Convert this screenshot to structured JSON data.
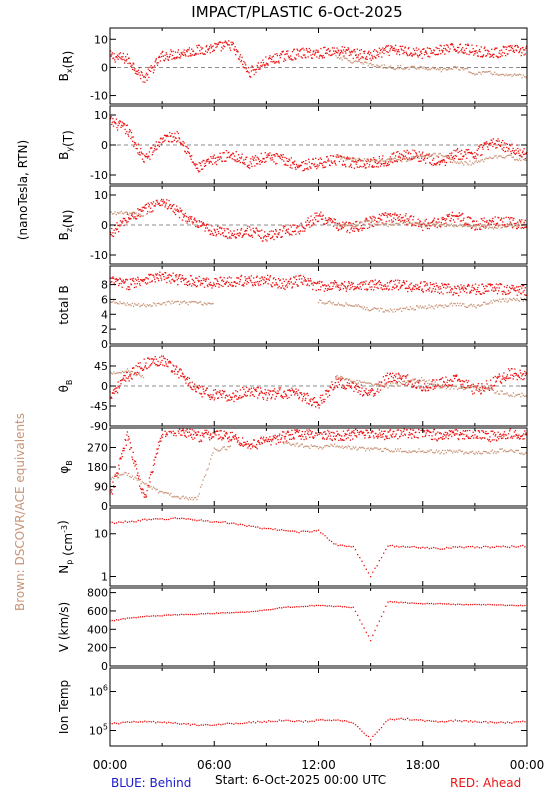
{
  "title": "IMPACT/PLASTIC    6-Oct-2025",
  "side_label_units": "(nanoTesla, RTN)",
  "side_label_brown": "Brown: DSCOVR/ACE equivalents",
  "footer": {
    "blue": "BLUE: Behind",
    "start": "Start:   6-Oct-2025 00:00 UTC",
    "red": "RED: Ahead"
  },
  "colors": {
    "ahead": "#ee1111",
    "equivalent": "#c89478",
    "blue": "#1a1acc",
    "text": "#000000"
  },
  "chart_data": [
    {
      "type": "scatter",
      "panel": "Bx",
      "ylabel": "B_x(R)",
      "ylim": [
        -13,
        14
      ],
      "yticks": [
        10,
        0,
        -10
      ],
      "ytick_labels": [
        "10",
        "0",
        "-10"
      ],
      "dashed_zero": true,
      "x": "hours 0-24",
      "series": [
        {
          "role": "ahead",
          "values": [
            4,
            3,
            -4,
            4,
            5,
            6,
            7,
            8,
            -2,
            2,
            4,
            5,
            5,
            6,
            5,
            4,
            6,
            6,
            5,
            6,
            7,
            6,
            5,
            6,
            6
          ]
        },
        {
          "role": "equivalent",
          "values": [
            null,
            null,
            null,
            null,
            null,
            null,
            null,
            null,
            null,
            null,
            null,
            null,
            null,
            4,
            2,
            1,
            0,
            0,
            0,
            -1,
            0,
            -2,
            -2,
            -3,
            -3
          ]
        }
      ]
    },
    {
      "type": "scatter",
      "panel": "By",
      "ylabel": "B_y(T)",
      "ylim": [
        -13,
        13
      ],
      "yticks": [
        10,
        0,
        -10
      ],
      "ytick_labels": [
        "10",
        "0",
        "-10"
      ],
      "dashed_zero": true,
      "series": [
        {
          "role": "ahead",
          "values": [
            8,
            5,
            -5,
            2,
            3,
            -8,
            -5,
            -3,
            -6,
            -4,
            -5,
            -7,
            -6,
            -5,
            -6,
            -6,
            -5,
            -3,
            -4,
            -6,
            -3,
            -3,
            1,
            -1,
            -3
          ]
        },
        {
          "role": "equivalent",
          "values": [
            null,
            null,
            null,
            null,
            null,
            null,
            null,
            null,
            null,
            null,
            null,
            null,
            null,
            -4,
            -5,
            -5,
            -5,
            -5,
            -4,
            -3,
            -6,
            -6,
            -4,
            -4,
            -5
          ]
        }
      ]
    },
    {
      "type": "scatter",
      "panel": "Bz",
      "ylabel": "B_z(N)",
      "ylim": [
        -13,
        13
      ],
      "yticks": [
        10,
        0,
        -10
      ],
      "ytick_labels": [
        "10",
        "0",
        "-10"
      ],
      "dashed_zero": true,
      "series": [
        {
          "role": "ahead",
          "values": [
            -3,
            2,
            5,
            8,
            4,
            0,
            -2,
            -3,
            -2,
            -4,
            -2,
            -1,
            3,
            0,
            -1,
            1,
            3,
            2,
            0,
            1,
            3,
            0,
            1,
            1,
            0
          ]
        },
        {
          "role": "equivalent",
          "values": [
            4,
            4,
            3,
            null,
            null,
            null,
            null,
            null,
            null,
            null,
            null,
            null,
            null,
            0,
            0,
            1,
            0,
            1,
            0,
            0,
            0,
            0,
            -1,
            0,
            0
          ]
        }
      ]
    },
    {
      "type": "scatter",
      "panel": "Btotal",
      "ylabel": "total B",
      "ylim": [
        0,
        10.5
      ],
      "yticks": [
        8,
        6,
        4,
        2,
        0
      ],
      "ytick_labels": [
        "8",
        "6",
        "4",
        "2",
        "0"
      ],
      "series": [
        {
          "role": "ahead",
          "values": [
            8.5,
            8.0,
            8.8,
            9.0,
            8.7,
            8.4,
            8.2,
            8.5,
            8.5,
            8.6,
            8.0,
            8.6,
            7.7,
            8.0,
            7.7,
            7.9,
            8.0,
            7.8,
            7.7,
            7.5,
            7.2,
            7.4,
            7.5,
            7.3,
            7.2
          ]
        },
        {
          "role": "equivalent",
          "values": [
            5.6,
            5.4,
            5.2,
            5.5,
            5.6,
            5.5,
            5.4,
            null,
            null,
            null,
            null,
            null,
            5.7,
            5.5,
            5.2,
            4.7,
            4.5,
            4.7,
            5.0,
            5.0,
            5.4,
            5.0,
            5.7,
            5.9,
            6.0
          ]
        }
      ]
    },
    {
      "type": "scatter",
      "panel": "theta",
      "ylabel": "θ_B",
      "ylim": [
        -90,
        90
      ],
      "yticks": [
        45,
        0,
        -45,
        -90
      ],
      "ytick_labels": [
        "45",
        "0",
        "-45",
        "-90"
      ],
      "dashed_zero": true,
      "series": [
        {
          "role": "ahead",
          "values": [
            -20,
            20,
            50,
            60,
            30,
            -10,
            -20,
            -25,
            -10,
            -20,
            -15,
            -20,
            -40,
            10,
            0,
            -20,
            20,
            15,
            0,
            5,
            15,
            -10,
            5,
            30,
            20
          ]
        },
        {
          "role": "equivalent",
          "values": [
            30,
            35,
            20,
            null,
            null,
            null,
            null,
            null,
            null,
            null,
            null,
            null,
            null,
            20,
            10,
            5,
            0,
            10,
            15,
            0,
            -5,
            -5,
            -10,
            -20,
            -20
          ]
        }
      ]
    },
    {
      "type": "scatter",
      "panel": "phi",
      "ylabel": "φ_B",
      "ylim": [
        0,
        360
      ],
      "yticks": [
        270,
        180,
        90,
        0
      ],
      "ytick_labels": [
        "270",
        "180",
        "90",
        "0"
      ],
      "series": [
        {
          "role": "ahead",
          "values": [
            40,
            320,
            30,
            340,
            350,
            320,
            330,
            320,
            280,
            300,
            320,
            330,
            340,
            320,
            330,
            340,
            330,
            340,
            335,
            325,
            330,
            340,
            320,
            340,
            330
          ]
        },
        {
          "role": "equivalent",
          "values": [
            130,
            150,
            100,
            60,
            40,
            30,
            260,
            270,
            null,
            null,
            290,
            280,
            270,
            280,
            270,
            260,
            260,
            255,
            255,
            250,
            250,
            245,
            250,
            260,
            240
          ]
        }
      ]
    },
    {
      "type": "line",
      "panel": "Np",
      "ylabel": "N_p (cm^-3)",
      "ylim": [
        0.6,
        40
      ],
      "log": true,
      "yticks": [
        10,
        1
      ],
      "ytick_labels": [
        "10",
        "1"
      ],
      "series": [
        {
          "role": "ahead",
          "values": [
            18,
            19,
            21,
            22,
            23,
            21,
            19,
            18,
            15,
            13,
            12,
            11,
            12,
            5.5,
            5.0,
            1.0,
            5.2,
            5.0,
            4.8,
            4.5,
            5.0,
            4.8,
            4.9,
            5.0,
            5.2
          ]
        }
      ]
    },
    {
      "type": "line",
      "panel": "V",
      "ylabel": "V (km/s)",
      "ylim": [
        0,
        850
      ],
      "yticks": [
        800,
        600,
        400,
        200,
        0
      ],
      "ytick_labels": [
        "800",
        "600",
        "400",
        "200",
        "0"
      ],
      "series": [
        {
          "role": "ahead",
          "values": [
            490,
            520,
            540,
            550,
            560,
            565,
            575,
            580,
            590,
            610,
            640,
            650,
            660,
            650,
            640,
            280,
            700,
            690,
            680,
            680,
            670,
            670,
            670,
            660,
            660
          ]
        }
      ]
    },
    {
      "type": "line",
      "panel": "Temp",
      "ylabel": "Ion Temp",
      "ylim": [
        40000,
        4000000
      ],
      "log": true,
      "yticks": [
        1000000,
        100000
      ],
      "ytick_labels": [
        "10^6",
        "10^5"
      ],
      "series": [
        {
          "role": "ahead",
          "values": [
            150000,
            160000,
            170000,
            160000,
            150000,
            140000,
            140000,
            150000,
            160000,
            170000,
            180000,
            170000,
            180000,
            190000,
            160000,
            60000,
            190000,
            200000,
            180000,
            170000,
            180000,
            170000,
            160000,
            160000,
            170000
          ]
        }
      ]
    }
  ],
  "x_axis": {
    "ticks": [
      "00:00",
      "06:00",
      "12:00",
      "18:00",
      "00:00"
    ]
  }
}
